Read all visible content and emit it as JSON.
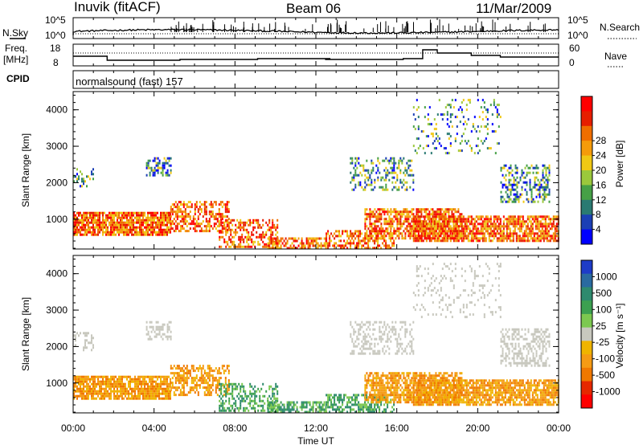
{
  "header": {
    "station": "Inuvik (fitACF)",
    "beam": "Beam 06",
    "date": "11/Mar/2009"
  },
  "strip_labels": {
    "nsky": "N.Sky",
    "nsearch": "N.Search",
    "freq_line1": "Freq.",
    "freq_line2": "[MHz]",
    "nave": "Nave",
    "cpid": "CPID",
    "cpid_value": "normalsound (fast) 157"
  },
  "noise_axis": {
    "top_left": "10^5",
    "bottom_left": "10^0",
    "top_right": "10^5",
    "bottom_right": "10^0"
  },
  "freq_axis": {
    "left_ticks": [
      "18",
      "8"
    ],
    "right_ticks": [
      "60",
      "0"
    ]
  },
  "chart_data": [
    {
      "type": "heatmap",
      "name": "power",
      "ylabel": "Slant Range [km]",
      "yticks": [
        "1000",
        "2000",
        "3000",
        "4000"
      ],
      "ylim": [
        180,
        4500
      ],
      "colorbar_label": "Power [dB]",
      "colorbar_ticks": [
        "4",
        "8",
        "12",
        "16",
        "20",
        "24",
        "28"
      ],
      "colors": [
        "#0000ff",
        "#1b3fb5",
        "#2a7a72",
        "#46a046",
        "#9bc83c",
        "#f0c814",
        "#f59b0a",
        "#f06e00",
        "#e61e00",
        "#ff0000"
      ]
    },
    {
      "type": "heatmap",
      "name": "velocity",
      "ylabel": "Slant Range [km]",
      "yticks": [
        "1000",
        "2000",
        "3000",
        "4000"
      ],
      "ylim": [
        180,
        4500
      ],
      "colorbar_label": "Velocity [m s⁻¹]",
      "colorbar_ticks": [
        "1000",
        "500",
        "100",
        "25",
        "-25",
        "-100",
        "-500",
        "-1000"
      ],
      "colors": [
        "#1e3cc8",
        "#2a6aa0",
        "#2e8a6e",
        "#3ca050",
        "#7cc850",
        "#c8c8be",
        "#f0b400",
        "#f59b14",
        "#f07800",
        "#e62800",
        "#ff0000"
      ]
    }
  ],
  "time_axis": {
    "label": "Time UT",
    "ticks": [
      "00:00",
      "04:00",
      "08:00",
      "12:00",
      "16:00",
      "20:00",
      "00:00"
    ]
  }
}
